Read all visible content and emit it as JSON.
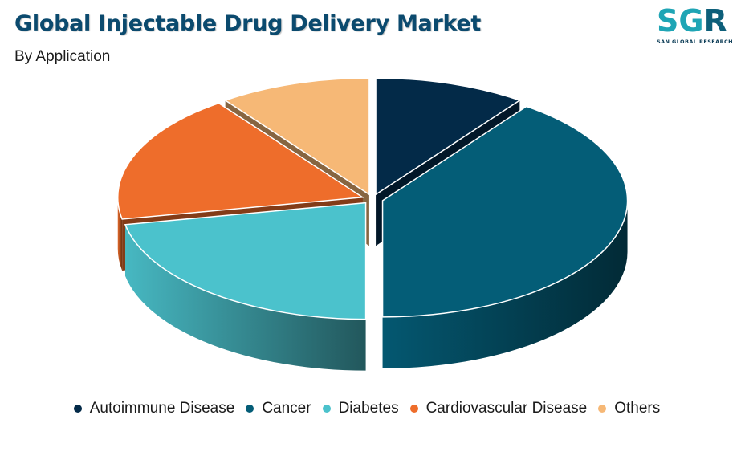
{
  "title": "Global Injectable Drug Delivery Market",
  "subtitle": "By Application",
  "logo": {
    "s": "S",
    "g": "G",
    "r": "R",
    "tagline": "SAN GLOBAL RESEARCH"
  },
  "chart_data": {
    "type": "pie",
    "style": "3d-exploded",
    "legend_position": "bottom",
    "categories": [
      "Autoimmune Disease",
      "Cancer",
      "Diabetes",
      "Cardiovascular Disease",
      "Others"
    ],
    "values": [
      10,
      40,
      22,
      18,
      10
    ],
    "colors": [
      "#032a48",
      "#045d77",
      "#4bc2cc",
      "#ee6d2b",
      "#f6b876"
    ]
  }
}
